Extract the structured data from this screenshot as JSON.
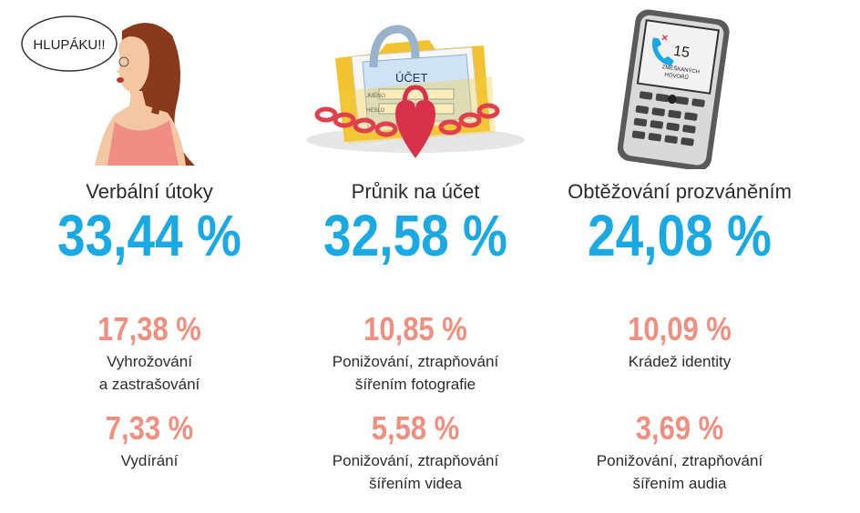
{
  "columns": [
    {
      "title": "Verbální útoky",
      "main_percent": "33,44 %",
      "illustration": "woman-shouting-icon",
      "bubble_text": "HLUPÁKU!!",
      "sub_items": [
        {
          "percent": "17,38 %",
          "label_line1": "Vyhrožování",
          "label_line2": "a zastrašování"
        },
        {
          "percent": "7,33 %",
          "label_line1": "Vydírání",
          "label_line2": ""
        }
      ]
    },
    {
      "title": "Průnik na účet",
      "main_percent": "32,58 %",
      "illustration": "locked-folder-icon",
      "folder_text": {
        "heading": "ÚČET",
        "field1": "JMÉNO",
        "field2": "HESLO"
      },
      "sub_items": [
        {
          "percent": "10,85 %",
          "label_line1": "Ponižování, ztrapňování",
          "label_line2": "šířením fotografie"
        },
        {
          "percent": "5,58 %",
          "label_line1": "Ponižování, ztrapňování",
          "label_line2": "šířením videa"
        }
      ]
    },
    {
      "title": "Obtěžování prozváněním",
      "main_percent": "24,08 %",
      "illustration": "phone-missed-calls-icon",
      "phone_text": {
        "count": "15",
        "line1": "ZMEŠKANÝCH",
        "line2": "HOVORŮ"
      },
      "sub_items": [
        {
          "percent": "10,09 %",
          "label_line1": "Krádež identity",
          "label_line2": ""
        },
        {
          "percent": "3,69 %",
          "label_line1": "Ponižování, ztrapňování",
          "label_line2": "šířením audia"
        }
      ]
    }
  ],
  "colors": {
    "main_percent": "#1aa9e2",
    "sub_percent": "#ef8f80",
    "text": "#2b2b2b"
  }
}
